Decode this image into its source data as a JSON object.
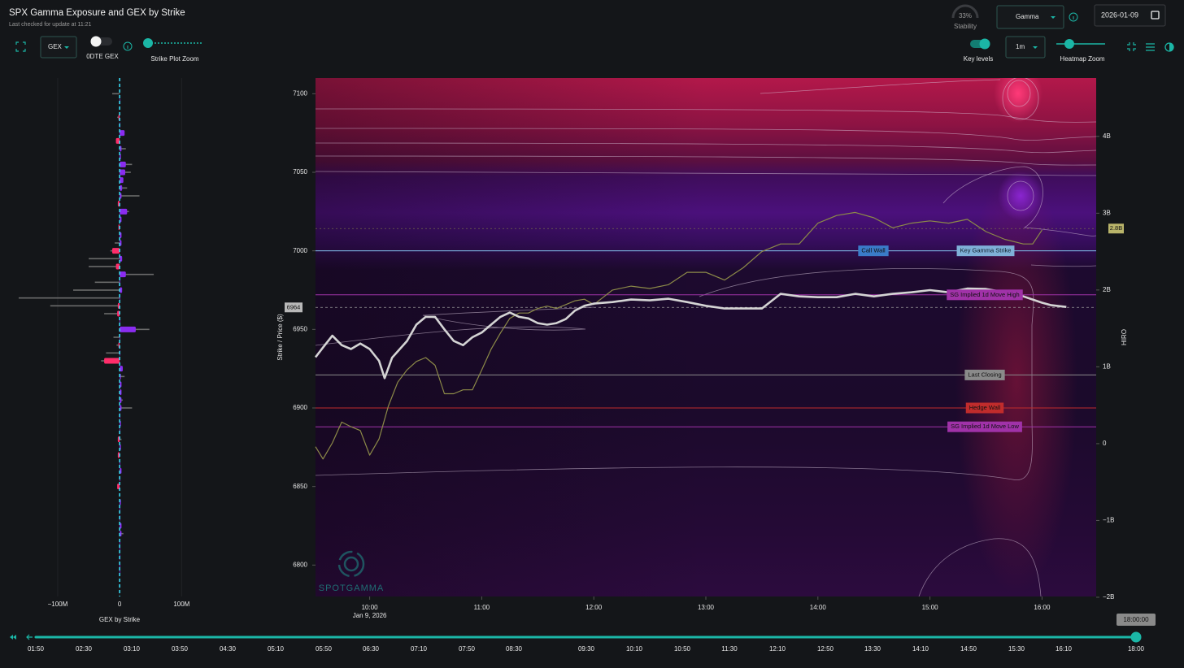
{
  "header": {
    "title": "SPX Gamma Exposure and GEX by Strike",
    "subtitle": "Last checked for update at 11:21"
  },
  "controls": {
    "metric_select": "GEX",
    "toggle_label": "0DTE GEX",
    "strike_zoom_label": "Strike Plot Zoom",
    "stability": {
      "value": "33%",
      "label": "Stability"
    },
    "mode_select": "Gamma",
    "date": "2026-01-09",
    "key_levels_label": "Key levels",
    "interval_select": "1m",
    "heatmap_zoom_label": "Heatmap Zoom"
  },
  "watermark": "SPOTGAMMA",
  "left_chart": {
    "type": "bar",
    "xlabel": "GEX by Strike",
    "xlim": [
      -180,
      240
    ],
    "xticks": [
      {
        "value": -100,
        "label": "−100M"
      },
      0,
      {
        "value": 100,
        "label": "100M"
      }
    ],
    "ylim": [
      6780,
      7110
    ],
    "strikes": [
      7100,
      7095,
      7090,
      7085,
      7080,
      7075,
      7070,
      7065,
      7060,
      7055,
      7050,
      7045,
      7040,
      7035,
      7030,
      7025,
      7020,
      7015,
      7010,
      7005,
      7000,
      6995,
      6990,
      6985,
      6980,
      6975,
      6970,
      6965,
      6960,
      6955,
      6950,
      6945,
      6940,
      6935,
      6930,
      6925,
      6920,
      6915,
      6910,
      6905,
      6900,
      6895,
      6890,
      6885,
      6880,
      6875,
      6870,
      6865,
      6860,
      6855,
      6850,
      6845,
      6840,
      6835,
      6830,
      6825,
      6820,
      6815,
      6810,
      6805,
      6800,
      6795
    ],
    "positive_color": "#8a2cf0",
    "negative_color": "#ff2d6a",
    "series": [
      {
        "values": [
          0,
          1,
          0,
          -2,
          1,
          8,
          -6,
          3,
          2,
          10,
          9,
          6,
          4,
          3,
          -3,
          12,
          3,
          -2,
          3,
          3,
          -12,
          4,
          -6,
          10,
          1,
          4,
          1,
          -3,
          -4,
          1,
          26,
          1,
          -2,
          1,
          -25,
          5,
          2,
          3,
          3,
          3,
          3,
          1,
          2,
          1,
          -3,
          2,
          -3,
          1,
          3,
          1,
          -4,
          0,
          2,
          1,
          1,
          3,
          3,
          1,
          1,
          1,
          1,
          1
        ]
      },
      {
        "color": "#6b6b6b",
        "values": [
          -12,
          0,
          0,
          -4,
          0,
          3,
          0,
          10,
          0,
          20,
          18,
          0,
          12,
          32,
          0,
          15,
          0,
          0,
          0,
          -8,
          -15,
          -50,
          -50,
          55,
          -40,
          -75,
          -163,
          -112,
          -25,
          0,
          48,
          -10,
          -5,
          -22,
          -30,
          5,
          8,
          0,
          0,
          5,
          20,
          0,
          0,
          0,
          3,
          0,
          0,
          0,
          0,
          0,
          0,
          0,
          0,
          0,
          0,
          0,
          6,
          0,
          0,
          0,
          0,
          0
        ]
      }
    ]
  },
  "main_chart": {
    "type": "line",
    "ylabel": "Strike / Price ($)",
    "y2label": "HIRO",
    "xlim": [
      "09:31",
      "16:29"
    ],
    "xticks": [
      "10:00",
      "11:00",
      "12:00",
      "13:00",
      "14:00",
      "15:00",
      "16:00"
    ],
    "date_label": "Jan 9, 2026",
    "ylim": [
      6780,
      7110
    ],
    "yticks": [
      6800,
      6850,
      6900,
      6950,
      7000,
      7050,
      7100
    ],
    "y2lim": [
      -1.99,
      4.76
    ],
    "y2ticks": [
      {
        "value": -2,
        "label": "−2B"
      },
      {
        "value": -1,
        "label": "−1B"
      },
      0,
      {
        "value": 1,
        "label": "1B"
      },
      {
        "value": 2,
        "label": "2B"
      },
      {
        "value": 3,
        "label": "3B"
      },
      {
        "value": 4,
        "label": "4B"
      }
    ],
    "current_price": 6964,
    "hiro_last": {
      "value": 2.8,
      "label": "2.8B"
    },
    "series": [
      {
        "color": "#d4d4d4",
        "x": [
          "09:31",
          "09:35",
          "09:40",
          "09:45",
          "09:50",
          "09:55",
          "10:00",
          "10:05",
          "10:08",
          "10:12",
          "10:20",
          "10:25",
          "10:30",
          "10:35",
          "10:40",
          "10:45",
          "10:50",
          "10:55",
          "11:00",
          "11:05",
          "11:10",
          "11:15",
          "11:20",
          "11:25",
          "11:30",
          "11:35",
          "11:40",
          "11:45",
          "11:50",
          "11:55",
          "12:00",
          "12:10",
          "12:20",
          "12:30",
          "12:40",
          "12:50",
          "13:00",
          "13:10",
          "13:20",
          "13:30",
          "13:40",
          "13:50",
          "14:00",
          "14:10",
          "14:20",
          "14:30",
          "14:40",
          "14:50",
          "15:00",
          "15:10",
          "15:20",
          "15:30",
          "15:40",
          "15:50",
          "16:00",
          "16:05",
          "16:13"
        ],
        "values": [
          6932.3,
          6938.5,
          6946,
          6940,
          6937.5,
          6941,
          6937.5,
          6930,
          6919,
          6932,
          6942.6,
          6953,
          6958,
          6958,
          6950,
          6942.6,
          6940,
          6945,
          6948,
          6953,
          6958,
          6960.7,
          6958,
          6957,
          6954,
          6953,
          6954,
          6956.6,
          6962,
          6965,
          6966.4,
          6967.4,
          6969,
          6968.5,
          6969.5,
          6967.4,
          6965,
          6963.3,
          6963.3,
          6963.3,
          6972.6,
          6971,
          6970.5,
          6970.5,
          6972.6,
          6971,
          6972.6,
          6973.6,
          6975,
          6973.6,
          6976,
          6975.7,
          6973.6,
          6971,
          6967,
          6965.4,
          6964.3
        ]
      },
      {
        "color": "#8c8a48",
        "axis": "y2",
        "x": [
          "09:31",
          "09:35",
          "09:40",
          "09:45",
          "09:50",
          "09:55",
          "10:00",
          "10:05",
          "10:10",
          "10:15",
          "10:20",
          "10:25",
          "10:30",
          "10:35",
          "10:40",
          "10:45",
          "10:50",
          "10:55",
          "11:00",
          "11:05",
          "11:10",
          "11:15",
          "11:20",
          "11:25",
          "11:30",
          "11:35",
          "11:40",
          "11:45",
          "11:50",
          "11:55",
          "12:00",
          "12:10",
          "12:20",
          "12:30",
          "12:40",
          "12:50",
          "13:00",
          "13:10",
          "13:20",
          "13:30",
          "13:40",
          "13:50",
          "14:00",
          "14:10",
          "14:20",
          "14:30",
          "14:40",
          "14:50",
          "15:00",
          "15:10",
          "15:20",
          "15:30",
          "15:40",
          "15:50",
          "15:55",
          "16:00"
        ],
        "values": [
          -0.04,
          -0.2,
          0.01,
          0.28,
          0.22,
          0.17,
          -0.15,
          0.06,
          0.49,
          0.8,
          0.96,
          1.07,
          1.12,
          1.02,
          0.65,
          0.65,
          0.7,
          0.7,
          0.96,
          1.23,
          1.44,
          1.63,
          1.7,
          1.7,
          1.76,
          1.79,
          1.76,
          1.81,
          1.86,
          1.88,
          1.81,
          2.0,
          2.05,
          2.02,
          2.07,
          2.23,
          2.23,
          2.13,
          2.29,
          2.5,
          2.6,
          2.6,
          2.87,
          2.97,
          3.01,
          2.94,
          2.81,
          2.87,
          2.9,
          2.87,
          2.92,
          2.76,
          2.66,
          2.6,
          2.6,
          2.78
        ]
      }
    ],
    "key_levels": [
      {
        "label": "Call Wall",
        "value": 7000,
        "color": "#3a7bc8"
      },
      {
        "label": "Key Gamma Strike",
        "value": 7000,
        "color": "#7fb0d8"
      },
      {
        "label": "SG Implied 1d Move High",
        "value": 6972,
        "color": "#a032a8"
      },
      {
        "label": "Last Closing",
        "value": 6921,
        "color": "#8a8a8a"
      },
      {
        "label": "Hedge Wall",
        "value": 6900,
        "color": "#c02c2c"
      },
      {
        "label": "SG Implied 1d Move Low",
        "value": 6888,
        "color": "#a032a8"
      }
    ]
  },
  "timeline": {
    "ticks": [
      "01:50",
      "02:30",
      "03:10",
      "03:50",
      "04:30",
      "05:10",
      "05:50",
      "06:30",
      "07:10",
      "07:50",
      "08:30",
      "09:30",
      "10:10",
      "10:50",
      "11:30",
      "12:10",
      "12:50",
      "13:30",
      "14:10",
      "14:50",
      "15:30",
      "16:10",
      "18:00"
    ],
    "current": "18:00:00"
  }
}
